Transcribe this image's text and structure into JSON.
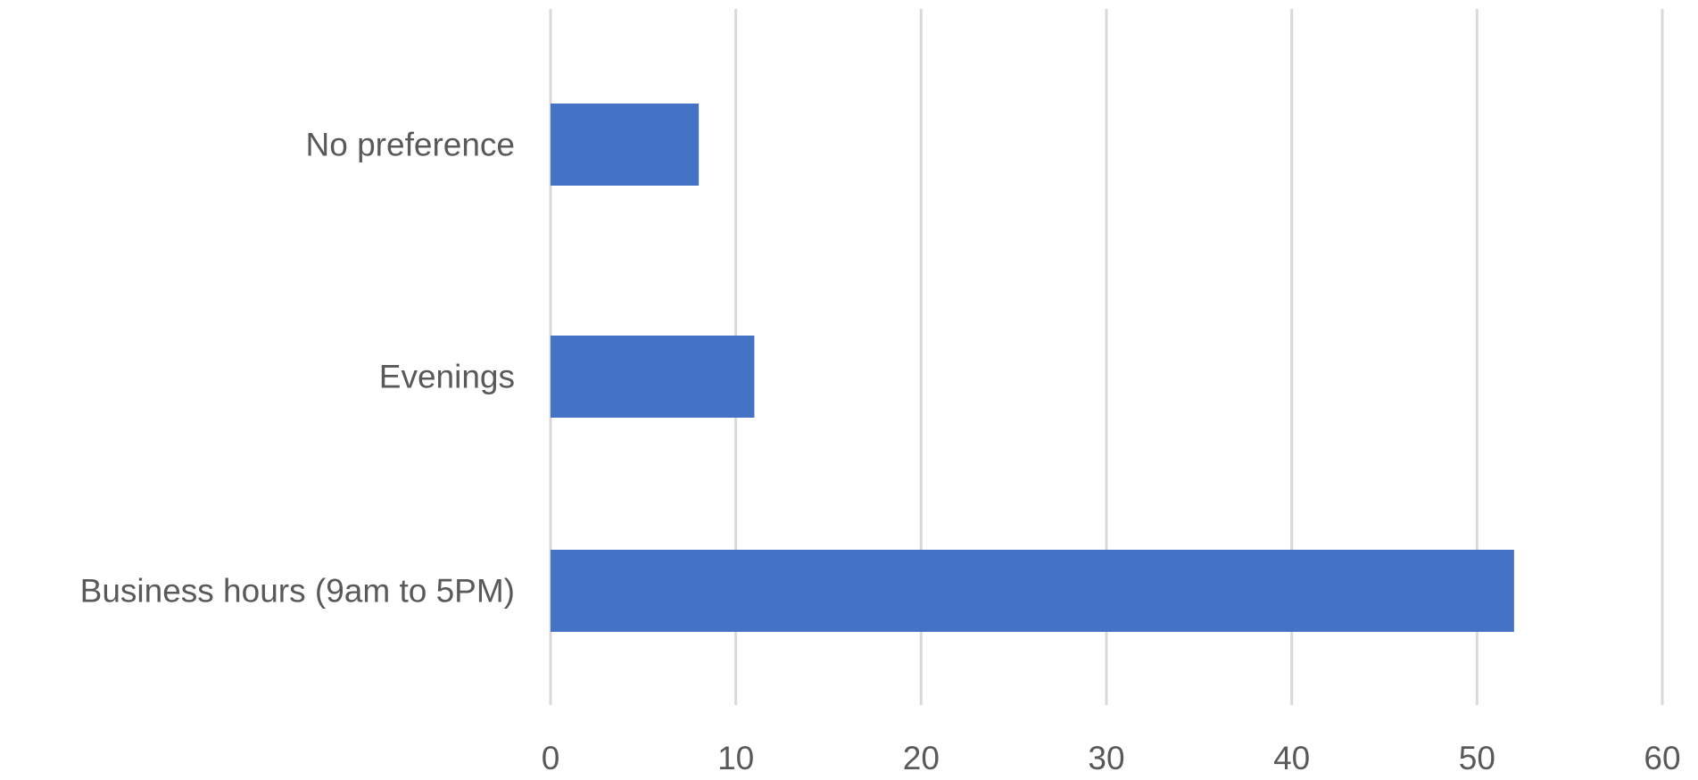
{
  "chart_data": {
    "type": "bar",
    "orientation": "horizontal",
    "categories": [
      "Business hours (9am to 5PM)",
      "Evenings",
      "No preference"
    ],
    "values": [
      52,
      11,
      8
    ],
    "xlim": [
      0,
      60
    ],
    "xticks": [
      0,
      10,
      20,
      30,
      40,
      50,
      60
    ],
    "grid": true,
    "bar_color": "#4472c4"
  }
}
